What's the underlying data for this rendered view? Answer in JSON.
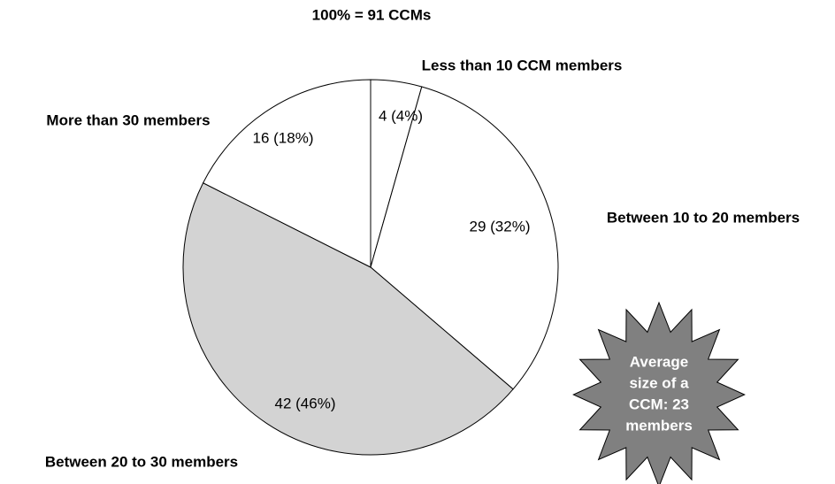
{
  "chart_data": {
    "type": "pie",
    "title": "100% = 91 CCMs",
    "categories": [
      "Less than 10 CCM members",
      "Between 10 to 20 members",
      "Between 20 to 30 members",
      "More than 30 members"
    ],
    "values": [
      4,
      29,
      42,
      16
    ],
    "value_labels": [
      "4 (4%)",
      "29 (32%)",
      "42 (46%)",
      "16 (18%)"
    ],
    "colors": [
      "#ffffff",
      "#ffffff",
      "#d3d3d3",
      "#ffffff"
    ],
    "annotation": [
      "Average",
      "size of a",
      "CCM:  23",
      "members"
    ]
  }
}
